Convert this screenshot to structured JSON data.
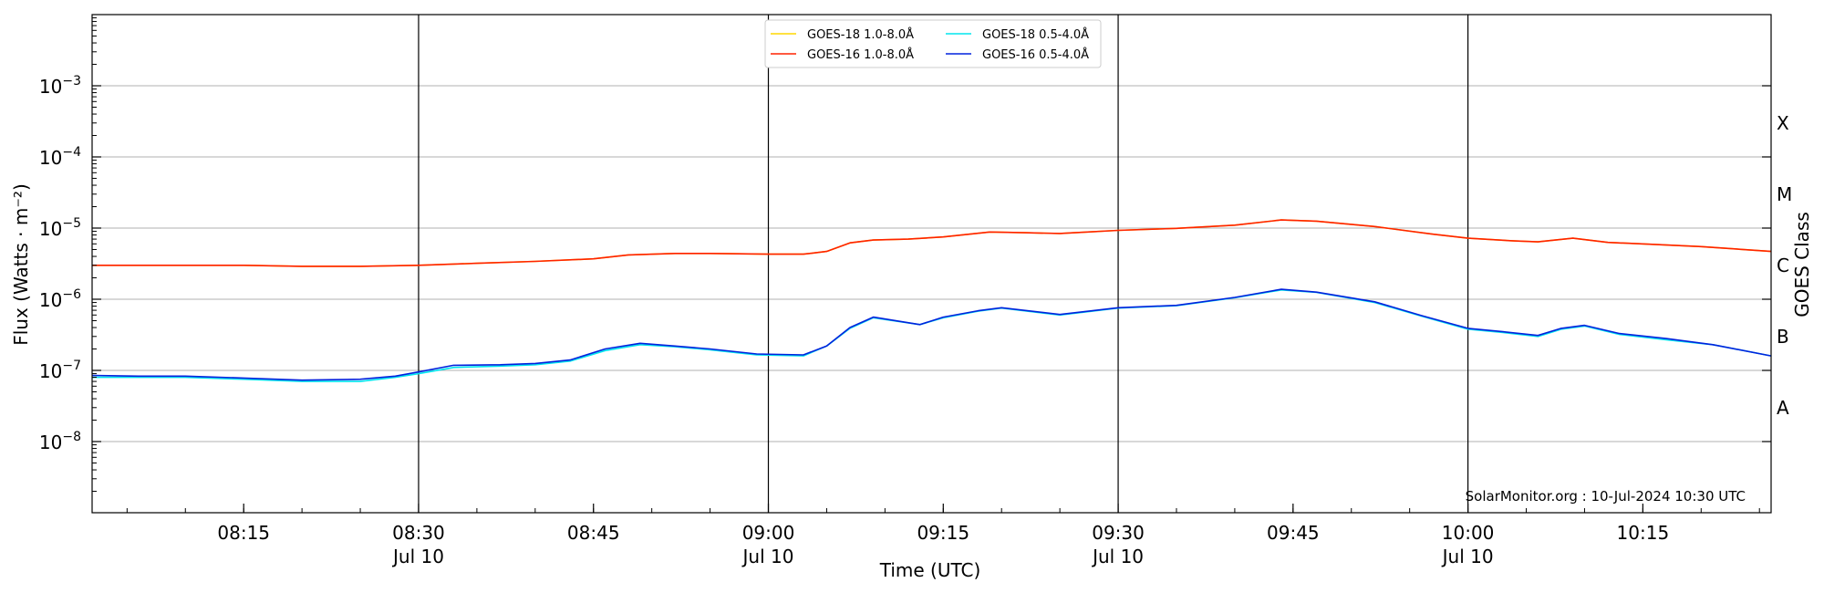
{
  "chart_data": {
    "type": "line",
    "title": "",
    "xlabel": "Time (UTC)",
    "ylabel": "Flux (Watts · m⁻²)",
    "y2label": "GOES Class",
    "yscale": "log",
    "ylim": [
      1e-09,
      0.01
    ],
    "xlim": [
      "08:02",
      "10:26"
    ],
    "grid": "horizontal at major decades",
    "y_ticks": [
      {
        "value": 1e-08,
        "base": "10",
        "exp": "−8"
      },
      {
        "value": 1e-07,
        "base": "10",
        "exp": "−7"
      },
      {
        "value": 1e-06,
        "base": "10",
        "exp": "−6"
      },
      {
        "value": 1e-05,
        "base": "10",
        "exp": "−5"
      },
      {
        "value": 0.0001,
        "base": "10",
        "exp": "−4"
      },
      {
        "value": 0.001,
        "base": "10",
        "exp": "−3"
      }
    ],
    "x_ticks": [
      {
        "time": "08:15",
        "label": "08:15",
        "sub": ""
      },
      {
        "time": "08:30",
        "label": "08:30",
        "sub": "Jul 10"
      },
      {
        "time": "08:45",
        "label": "08:45",
        "sub": ""
      },
      {
        "time": "09:00",
        "label": "09:00",
        "sub": "Jul 10"
      },
      {
        "time": "09:15",
        "label": "09:15",
        "sub": ""
      },
      {
        "time": "09:30",
        "label": "09:30",
        "sub": "Jul 10"
      },
      {
        "time": "09:45",
        "label": "09:45",
        "sub": ""
      },
      {
        "time": "10:00",
        "label": "10:00",
        "sub": "Jul 10"
      },
      {
        "time": "10:15",
        "label": "10:15",
        "sub": ""
      }
    ],
    "vlines": [
      "08:30",
      "09:00",
      "09:30",
      "10:00"
    ],
    "goes_classes": [
      {
        "label": "A",
        "value": 3e-08
      },
      {
        "label": "B",
        "value": 3e-07
      },
      {
        "label": "C",
        "value": 3e-06
      },
      {
        "label": "M",
        "value": 3e-05
      },
      {
        "label": "X",
        "value": 0.0003
      }
    ],
    "legend": {
      "placement": "top-center",
      "columns": 2
    },
    "series": [
      {
        "name": "GOES-18 1.0-8.0Å",
        "color": "#ffd700",
        "points": [
          [
            "08:02",
            3e-06
          ],
          [
            "08:06",
            3e-06
          ],
          [
            "08:10",
            3e-06
          ],
          [
            "08:15",
            3e-06
          ],
          [
            "08:20",
            2.9e-06
          ],
          [
            "08:25",
            2.9e-06
          ],
          [
            "08:30",
            3e-06
          ],
          [
            "08:35",
            3.2e-06
          ],
          [
            "08:40",
            3.4e-06
          ],
          [
            "08:45",
            3.7e-06
          ],
          [
            "08:48",
            4.2e-06
          ],
          [
            "08:52",
            4.4e-06
          ],
          [
            "08:55",
            4.4e-06
          ],
          [
            "09:00",
            4.3e-06
          ],
          [
            "09:03",
            4.3e-06
          ],
          [
            "09:05",
            4.7e-06
          ],
          [
            "09:07",
            6.2e-06
          ],
          [
            "09:09",
            6.8e-06
          ],
          [
            "09:12",
            7e-06
          ],
          [
            "09:15",
            7.5e-06
          ],
          [
            "09:19",
            8.8e-06
          ],
          [
            "09:22",
            8.6e-06
          ],
          [
            "09:25",
            8.4e-06
          ],
          [
            "09:30",
            9.3e-06
          ],
          [
            "09:35",
            9.9e-06
          ],
          [
            "09:40",
            1.1e-05
          ],
          [
            "09:44",
            1.3e-05
          ],
          [
            "09:47",
            1.25e-05
          ],
          [
            "09:52",
            1.05e-05
          ],
          [
            "09:57",
            8.2e-06
          ],
          [
            "10:00",
            7.2e-06
          ],
          [
            "10:04",
            6.6e-06
          ],
          [
            "10:06",
            6.4e-06
          ],
          [
            "10:09",
            7.2e-06
          ],
          [
            "10:12",
            6.3e-06
          ],
          [
            "10:16",
            5.9e-06
          ],
          [
            "10:20",
            5.5e-06
          ],
          [
            "10:26",
            4.7e-06
          ]
        ]
      },
      {
        "name": "GOES-16 1.0-8.0Å",
        "color": "#ff2200",
        "points": [
          [
            "08:02",
            3e-06
          ],
          [
            "08:06",
            3e-06
          ],
          [
            "08:10",
            3e-06
          ],
          [
            "08:15",
            3e-06
          ],
          [
            "08:20",
            2.9e-06
          ],
          [
            "08:25",
            2.9e-06
          ],
          [
            "08:30",
            3e-06
          ],
          [
            "08:35",
            3.2e-06
          ],
          [
            "08:40",
            3.4e-06
          ],
          [
            "08:45",
            3.7e-06
          ],
          [
            "08:48",
            4.2e-06
          ],
          [
            "08:52",
            4.4e-06
          ],
          [
            "08:55",
            4.4e-06
          ],
          [
            "09:00",
            4.3e-06
          ],
          [
            "09:03",
            4.3e-06
          ],
          [
            "09:05",
            4.7e-06
          ],
          [
            "09:07",
            6.2e-06
          ],
          [
            "09:09",
            6.8e-06
          ],
          [
            "09:12",
            7e-06
          ],
          [
            "09:15",
            7.5e-06
          ],
          [
            "09:19",
            8.8e-06
          ],
          [
            "09:22",
            8.6e-06
          ],
          [
            "09:25",
            8.4e-06
          ],
          [
            "09:30",
            9.3e-06
          ],
          [
            "09:35",
            9.9e-06
          ],
          [
            "09:40",
            1.1e-05
          ],
          [
            "09:44",
            1.3e-05
          ],
          [
            "09:47",
            1.25e-05
          ],
          [
            "09:52",
            1.05e-05
          ],
          [
            "09:57",
            8.2e-06
          ],
          [
            "10:00",
            7.2e-06
          ],
          [
            "10:04",
            6.6e-06
          ],
          [
            "10:06",
            6.4e-06
          ],
          [
            "10:09",
            7.2e-06
          ],
          [
            "10:12",
            6.3e-06
          ],
          [
            "10:16",
            5.9e-06
          ],
          [
            "10:20",
            5.5e-06
          ],
          [
            "10:26",
            4.7e-06
          ]
        ]
      },
      {
        "name": "GOES-18 0.5-4.0Å",
        "color": "#00e5ee",
        "points": [
          [
            "08:02",
            8e-08
          ],
          [
            "08:06",
            8e-08
          ],
          [
            "08:10",
            8e-08
          ],
          [
            "08:15",
            7.5e-08
          ],
          [
            "08:20",
            7e-08
          ],
          [
            "08:25",
            7e-08
          ],
          [
            "08:28",
            8e-08
          ],
          [
            "08:30",
            9e-08
          ],
          [
            "08:33",
            1.1e-07
          ],
          [
            "08:37",
            1.15e-07
          ],
          [
            "08:40",
            1.2e-07
          ],
          [
            "08:43",
            1.35e-07
          ],
          [
            "08:46",
            1.9e-07
          ],
          [
            "08:49",
            2.3e-07
          ],
          [
            "08:52",
            2.15e-07
          ],
          [
            "08:55",
            1.95e-07
          ],
          [
            "08:59",
            1.65e-07
          ],
          [
            "09:03",
            1.6e-07
          ],
          [
            "09:05",
            2.2e-07
          ],
          [
            "09:07",
            3.9e-07
          ],
          [
            "09:09",
            5.5e-07
          ],
          [
            "09:13",
            4.4e-07
          ],
          [
            "09:15",
            5.5e-07
          ],
          [
            "09:18",
            6.8e-07
          ],
          [
            "09:20",
            7.5e-07
          ],
          [
            "09:25",
            6e-07
          ],
          [
            "09:30",
            7.5e-07
          ],
          [
            "09:35",
            8.1e-07
          ],
          [
            "09:40",
            1.05e-06
          ],
          [
            "09:44",
            1.35e-06
          ],
          [
            "09:47",
            1.25e-06
          ],
          [
            "09:52",
            9e-07
          ],
          [
            "09:56",
            5.8e-07
          ],
          [
            "10:00",
            3.8e-07
          ],
          [
            "10:03",
            3.4e-07
          ],
          [
            "10:06",
            3e-07
          ],
          [
            "10:08",
            3.8e-07
          ],
          [
            "10:10",
            4.2e-07
          ],
          [
            "10:13",
            3.2e-07
          ],
          [
            "10:17",
            2.7e-07
          ],
          [
            "10:21",
            2.3e-07
          ],
          [
            "10:26",
            1.6e-07
          ]
        ]
      },
      {
        "name": "GOES-16 0.5-4.0Å",
        "color": "#0022dd",
        "points": [
          [
            "08:02",
            8.5e-08
          ],
          [
            "08:06",
            8.3e-08
          ],
          [
            "08:10",
            8.3e-08
          ],
          [
            "08:15",
            7.8e-08
          ],
          [
            "08:20",
            7.3e-08
          ],
          [
            "08:25",
            7.5e-08
          ],
          [
            "08:28",
            8.3e-08
          ],
          [
            "08:30",
            9.5e-08
          ],
          [
            "08:33",
            1.18e-07
          ],
          [
            "08:37",
            1.2e-07
          ],
          [
            "08:40",
            1.25e-07
          ],
          [
            "08:43",
            1.4e-07
          ],
          [
            "08:46",
            2e-07
          ],
          [
            "08:49",
            2.4e-07
          ],
          [
            "08:52",
            2.2e-07
          ],
          [
            "08:55",
            2e-07
          ],
          [
            "08:59",
            1.7e-07
          ],
          [
            "09:03",
            1.65e-07
          ],
          [
            "09:05",
            2.2e-07
          ],
          [
            "09:07",
            4e-07
          ],
          [
            "09:09",
            5.6e-07
          ],
          [
            "09:13",
            4.4e-07
          ],
          [
            "09:15",
            5.6e-07
          ],
          [
            "09:18",
            6.9e-07
          ],
          [
            "09:20",
            7.6e-07
          ],
          [
            "09:25",
            6.1e-07
          ],
          [
            "09:30",
            7.6e-07
          ],
          [
            "09:35",
            8.2e-07
          ],
          [
            "09:40",
            1.06e-06
          ],
          [
            "09:44",
            1.38e-06
          ],
          [
            "09:47",
            1.26e-06
          ],
          [
            "09:52",
            9.2e-07
          ],
          [
            "09:56",
            5.9e-07
          ],
          [
            "10:00",
            3.9e-07
          ],
          [
            "10:03",
            3.5e-07
          ],
          [
            "10:06",
            3.1e-07
          ],
          [
            "10:08",
            3.9e-07
          ],
          [
            "10:10",
            4.3e-07
          ],
          [
            "10:13",
            3.3e-07
          ],
          [
            "10:17",
            2.8e-07
          ],
          [
            "10:21",
            2.3e-07
          ],
          [
            "10:26",
            1.6e-07
          ]
        ]
      }
    ],
    "annotation": "SolarMonitor.org : 10-Jul-2024 10:30 UTC"
  }
}
